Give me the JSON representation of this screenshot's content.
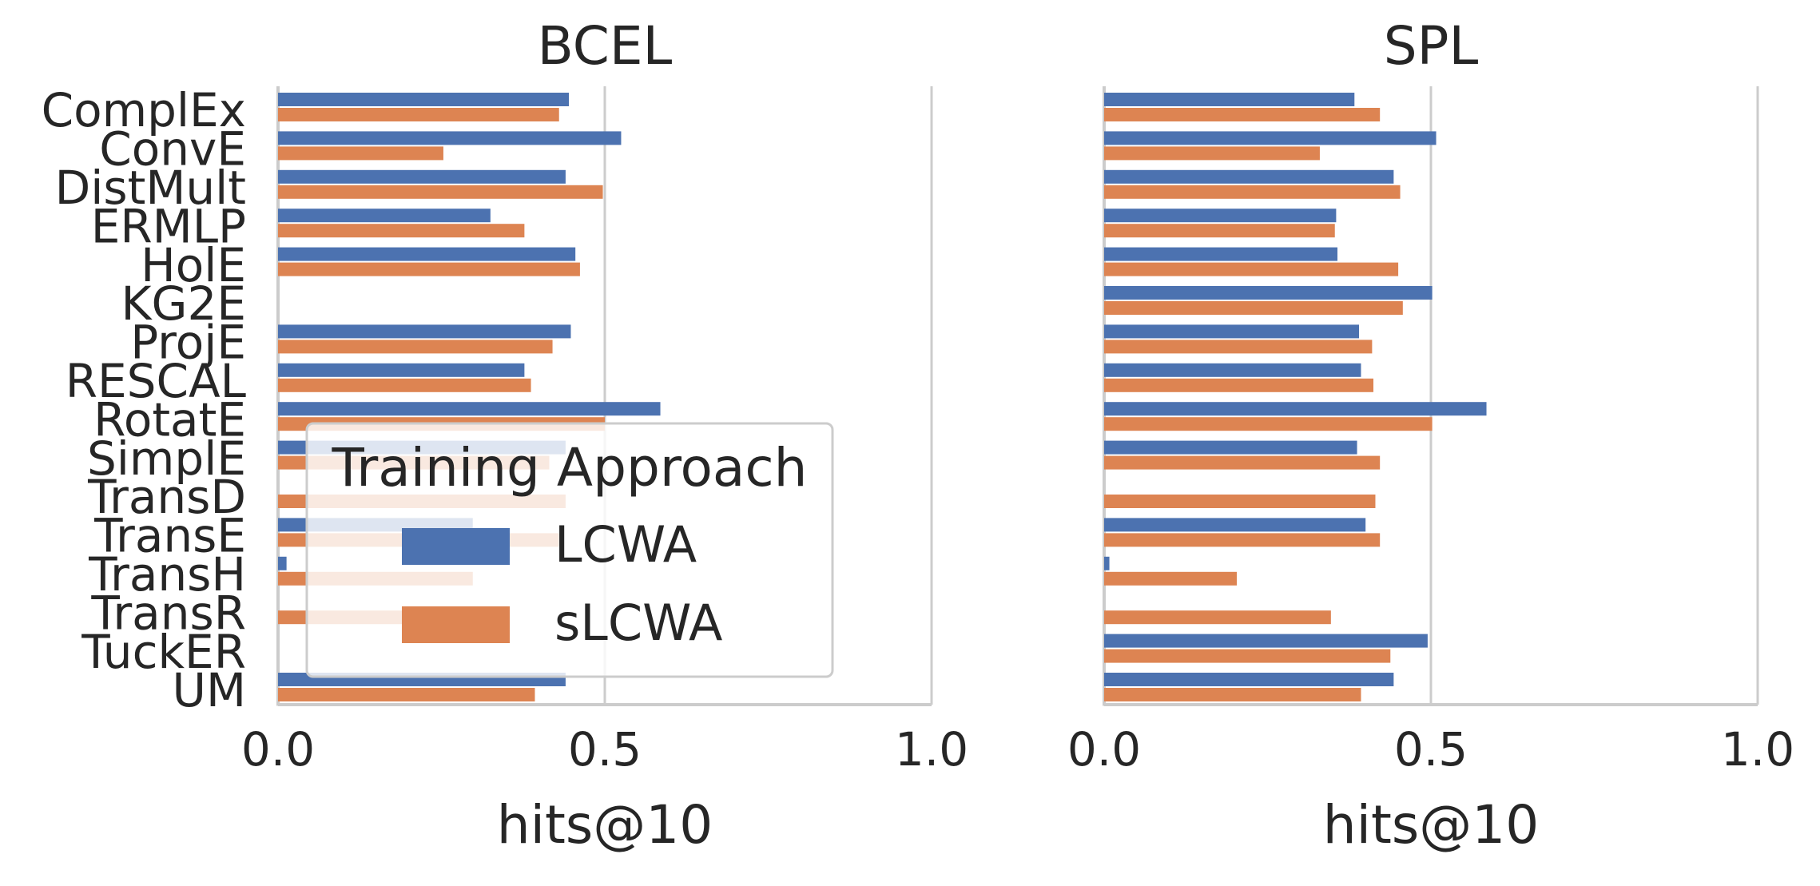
{
  "chart_data": [
    {
      "type": "bar",
      "orientation": "horizontal",
      "title": "BCEL",
      "xlabel": "hits@10",
      "ylabel": "",
      "xlim": [
        0,
        1
      ],
      "xticks": [
        "0.0",
        "0.5",
        "1.0"
      ],
      "grid": "vertical",
      "categories": [
        "ComplEx",
        "ConvE",
        "DistMult",
        "ERMLP",
        "HolE",
        "KG2E",
        "ProjE",
        "RESCAL",
        "RotatE",
        "SimplE",
        "TransD",
        "TransE",
        "TransH",
        "TransR",
        "TuckER",
        "UM"
      ],
      "series": [
        {
          "name": "LCWA",
          "values": [
            0.445,
            0.525,
            0.44,
            0.325,
            0.455,
            null,
            0.448,
            0.377,
            0.585,
            0.44,
            null,
            0.298,
            0.013,
            null,
            null,
            0.44
          ]
        },
        {
          "name": "sLCWA",
          "values": [
            0.43,
            0.253,
            0.497,
            0.377,
            0.462,
            null,
            0.42,
            0.387,
            0.5,
            0.415,
            0.44,
            0.43,
            0.298,
            0.19,
            null,
            0.393
          ]
        }
      ],
      "legend": {
        "title": "Training Approach",
        "placement": "lower-left-inside"
      }
    },
    {
      "type": "bar",
      "orientation": "horizontal",
      "title": "SPL",
      "xlabel": "hits@10",
      "ylabel": "",
      "xlim": [
        0,
        1
      ],
      "xticks": [
        "0.0",
        "0.5",
        "1.0"
      ],
      "grid": "vertical",
      "categories": [
        "ComplEx",
        "ConvE",
        "DistMult",
        "ERMLP",
        "HolE",
        "KG2E",
        "ProjE",
        "RESCAL",
        "RotatE",
        "SimplE",
        "TransD",
        "TransE",
        "TransH",
        "TransR",
        "TuckER",
        "UM"
      ],
      "series": [
        {
          "name": "LCWA",
          "values": [
            0.383,
            0.508,
            0.443,
            0.355,
            0.357,
            0.502,
            0.39,
            0.393,
            0.585,
            0.387,
            null,
            0.4,
            0.008,
            null,
            0.495,
            0.443
          ]
        },
        {
          "name": "sLCWA",
          "values": [
            0.422,
            0.33,
            0.453,
            0.353,
            0.45,
            0.457,
            0.41,
            0.412,
            0.502,
            0.422,
            0.415,
            0.422,
            0.203,
            0.347,
            0.438,
            0.393
          ]
        }
      ]
    }
  ],
  "colors": {
    "LCWA": "#4c72b0",
    "sLCWA": "#dd8452",
    "grid": "#cccccc",
    "axis": "#cccccc",
    "text": "#262626"
  }
}
